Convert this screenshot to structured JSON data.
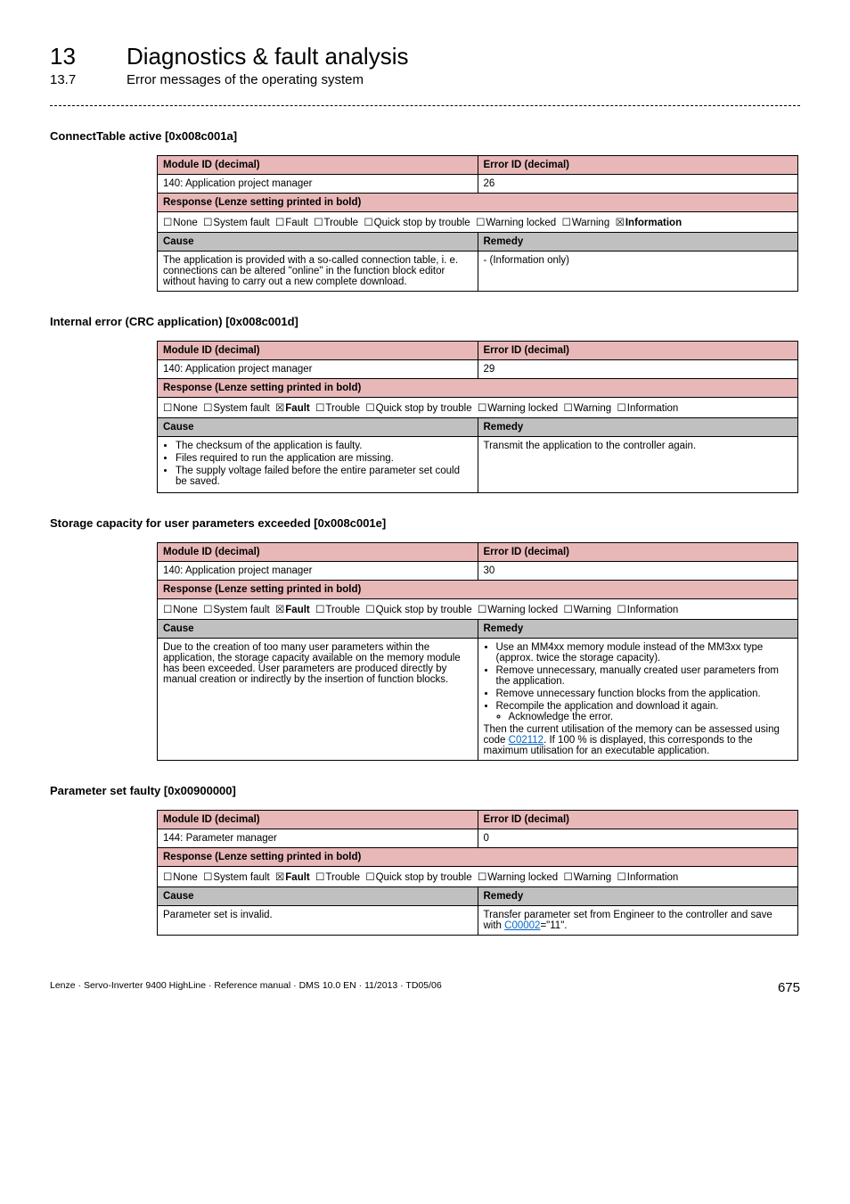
{
  "header": {
    "chapter_num": "13",
    "chapter_title": "Diagnostics & fault analysis",
    "sub_num": "13.7",
    "sub_title": "Error messages of the operating system"
  },
  "glyph": {
    "empty_box": "☐",
    "filled_box": "☒"
  },
  "sections": [
    {
      "heading": "ConnectTable active [0x008c001a]",
      "module_id_label": "Module ID (decimal)",
      "error_id_label": "Error ID (decimal)",
      "module_id_value": "140: Application project manager",
      "error_id_value": "26",
      "response_label": "Response (Lenze setting printed in bold)",
      "cause_label": "Cause",
      "remedy_label": "Remedy",
      "cause_items": [
        "The application is provided with a so-called connection table, i. e. connections can be altered \"online\" in the function block editor without having to carry out a new complete download."
      ],
      "cause_is_plain": true,
      "remedy_items": [
        "- (Information only)"
      ],
      "remedy_is_plain": true,
      "selected_response": "Information"
    },
    {
      "heading": "Internal error (CRC application) [0x008c001d]",
      "module_id_label": "Module ID (decimal)",
      "error_id_label": "Error ID (decimal)",
      "module_id_value": "140: Application project manager",
      "error_id_value": "29",
      "response_label": "Response (Lenze setting printed in bold)",
      "cause_label": "Cause",
      "remedy_label": "Remedy",
      "cause_items": [
        "The checksum of the application is faulty.",
        "Files required to run the application are missing.",
        "The supply voltage failed before the entire parameter set could be saved."
      ],
      "cause_is_plain": false,
      "remedy_items": [
        "Transmit the application to the controller again."
      ],
      "remedy_is_plain": true,
      "selected_response": "Fault"
    },
    {
      "heading": "Storage capacity for user parameters exceeded [0x008c001e]",
      "module_id_label": "Module ID (decimal)",
      "error_id_label": "Error ID (decimal)",
      "module_id_value": "140: Application project manager",
      "error_id_value": "30",
      "response_label": "Response (Lenze setting printed in bold)",
      "cause_label": "Cause",
      "remedy_label": "Remedy",
      "cause_items": [
        "Due to the creation of too many user parameters within the application, the storage capacity available on the memory module has been exceeded. User parameters are produced directly by manual creation or indirectly by the insertion of function blocks."
      ],
      "cause_is_plain": true,
      "remedy_items": [
        "Use an MM4xx memory module instead of the MM3xx type (approx. twice the storage capacity).",
        "Remove unnecessary, manually created user parameters from the application.",
        "Remove unnecessary function blocks from the application.",
        "Recompile the application and download it again.",
        "Acknowledge the error."
      ],
      "remedy_trailer_pre": "Then the current utilisation of the memory can be assessed using code ",
      "remedy_trailer_link": "C02112",
      "remedy_trailer_post": ". If 100 % is displayed, this corresponds to the maximum utilisation for an executable application.",
      "remedy_is_plain": false,
      "selected_response": "Fault"
    },
    {
      "heading": "Parameter set faulty [0x00900000]",
      "module_id_label": "Module ID (decimal)",
      "error_id_label": "Error ID (decimal)",
      "module_id_value": "144: Parameter manager",
      "error_id_value": "0",
      "response_label": "Response (Lenze setting printed in bold)",
      "cause_label": "Cause",
      "remedy_label": "Remedy",
      "cause_items": [
        "Parameter set is invalid."
      ],
      "cause_is_plain": true,
      "remedy_pre": "Transfer parameter set from Engineer to the controller and save with ",
      "remedy_link": "C00002",
      "remedy_post": "=\"11\".",
      "remedy_is_plain": true,
      "selected_response": "Fault"
    }
  ],
  "footer": {
    "left": "Lenze · Servo-Inverter 9400 HighLine · Reference manual · DMS 10.0 EN · 11/2013 · TD05/06",
    "page": "675"
  }
}
